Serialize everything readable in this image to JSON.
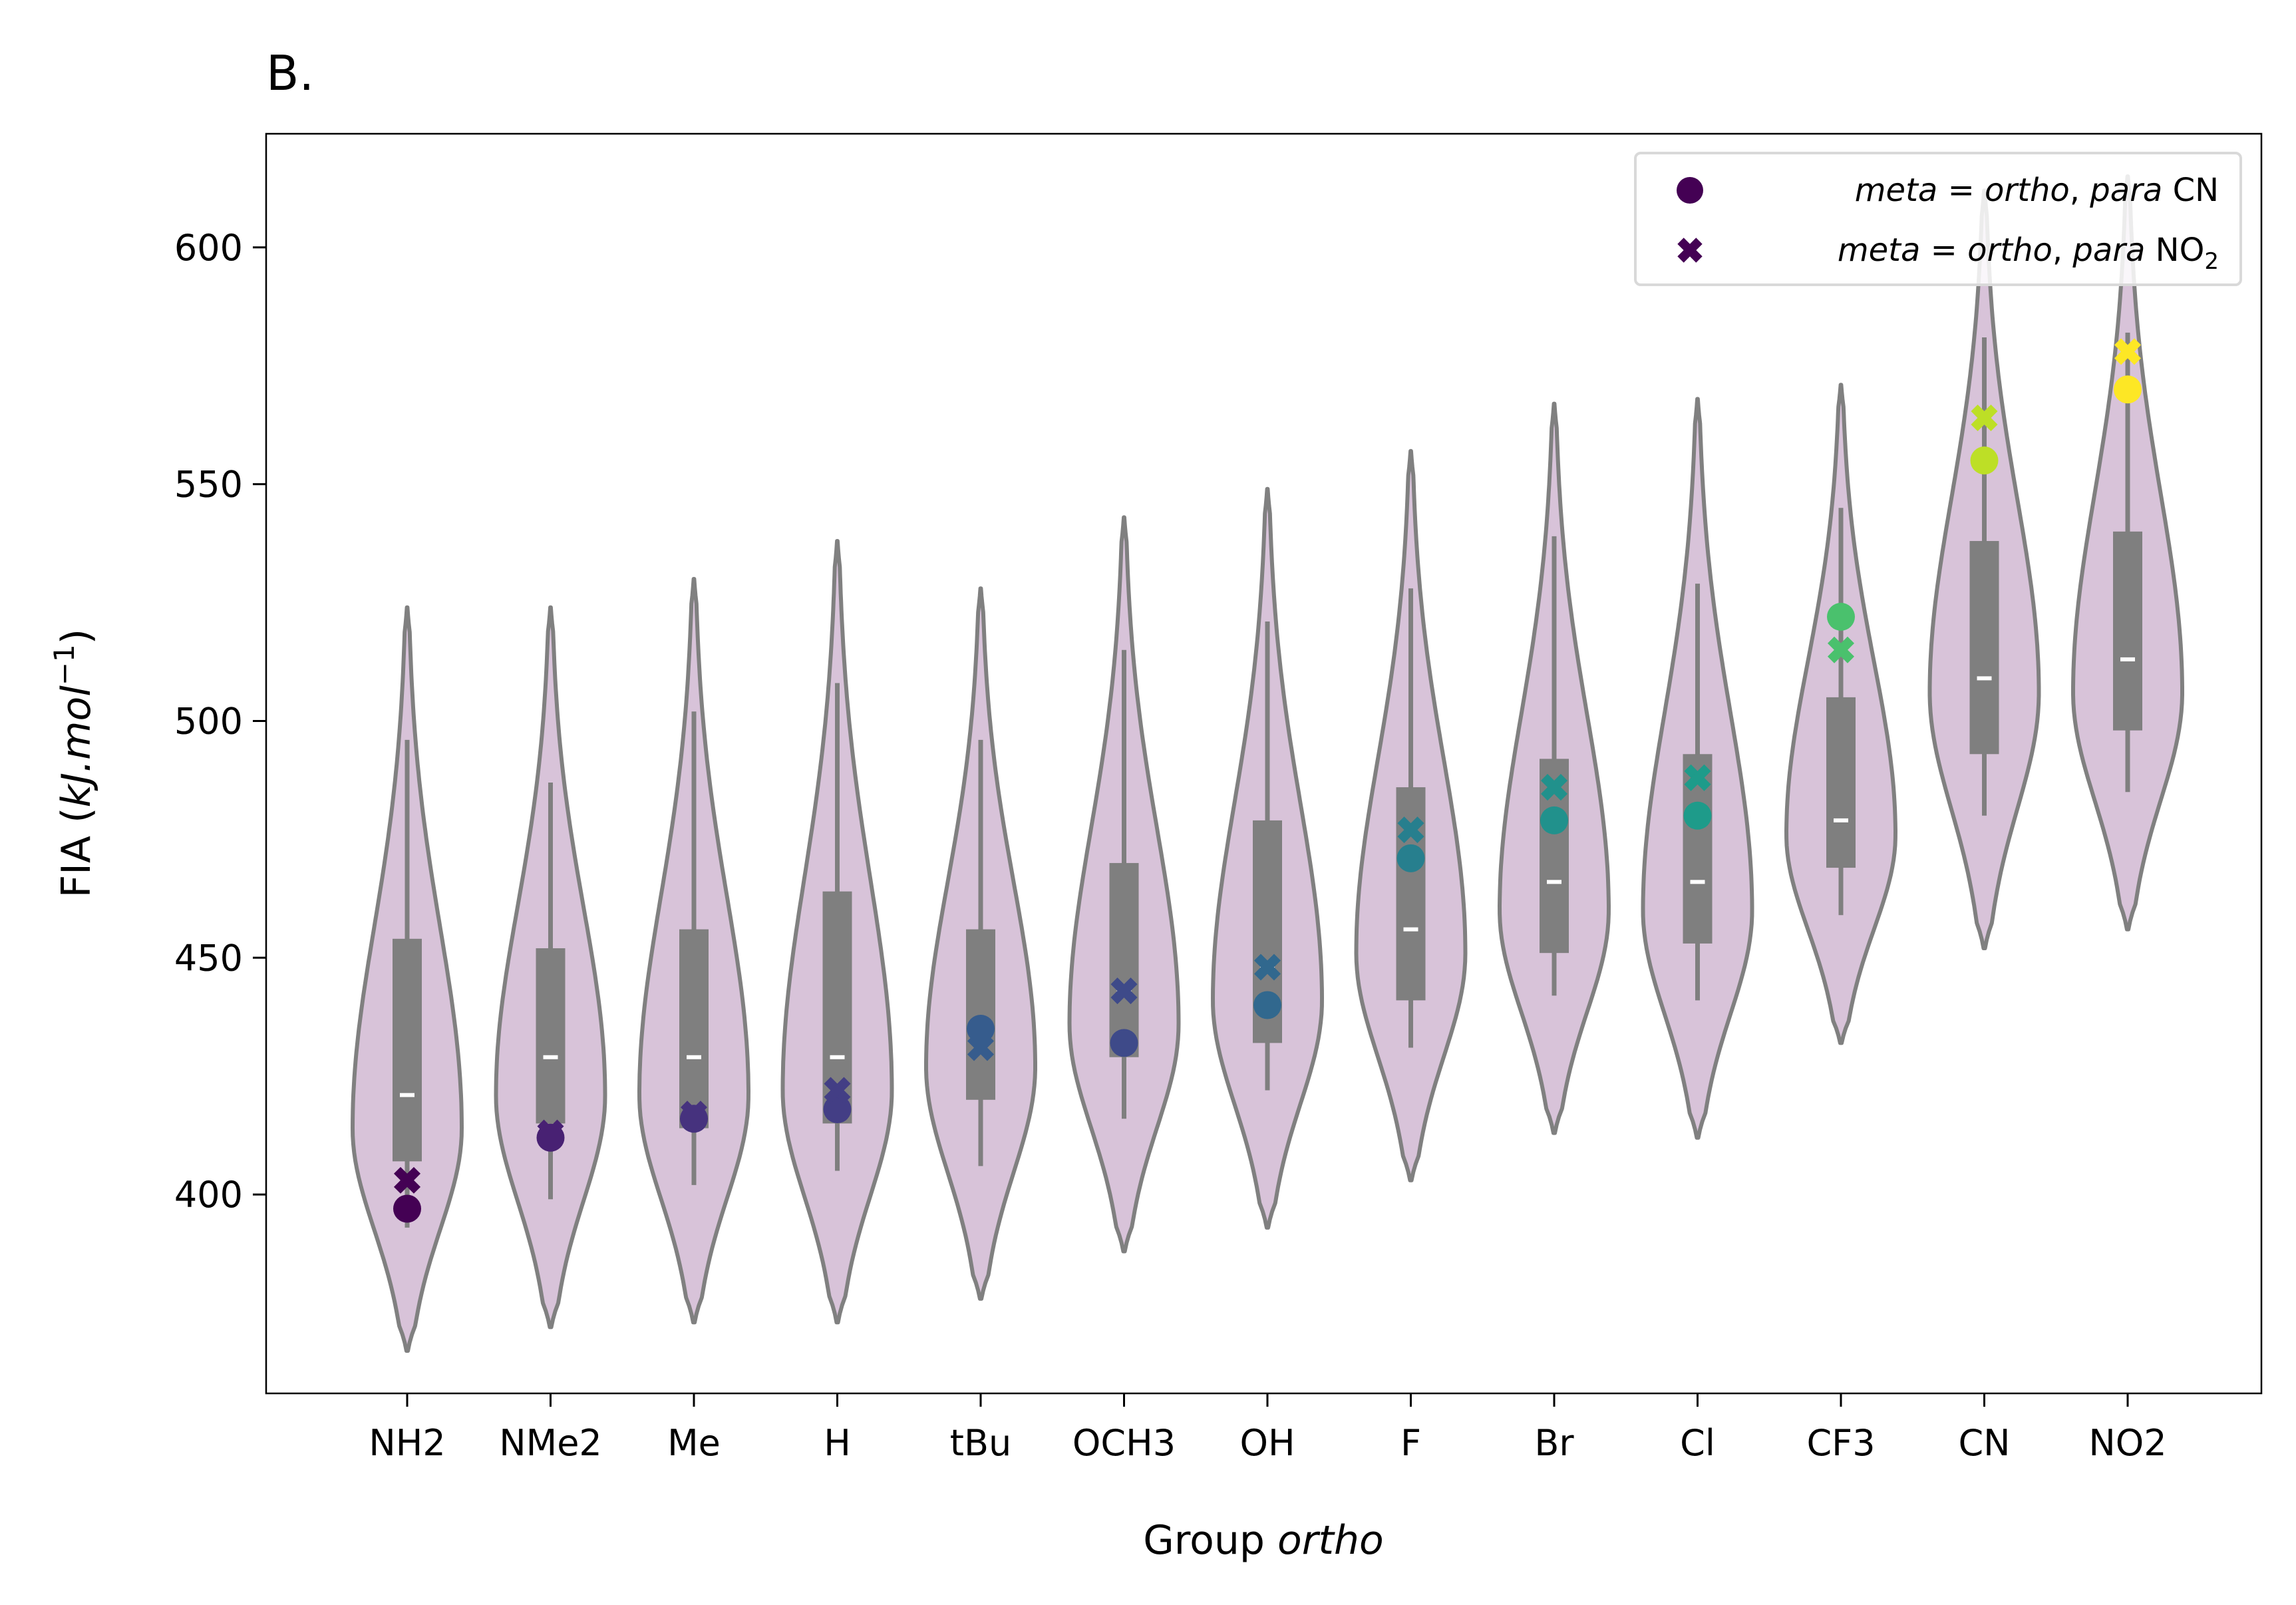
{
  "chart_data": {
    "type": "violin",
    "panel_label": "B.",
    "xlabel_prefix": "Group ",
    "xlabel_italic": "ortho",
    "ylabel_prefix": "FIA (",
    "ylabel_italic": "kJ.mol",
    "ylabel_sup": "−1",
    "ylabel_suffix": ")",
    "ylim": [
      358,
      624
    ],
    "yticks": [
      400,
      450,
      500,
      550,
      600
    ],
    "categories": [
      "NH2",
      "NMe2",
      "Me",
      "H",
      "tBu",
      "OCH3",
      "OH",
      "F",
      "Br",
      "Cl",
      "CF3",
      "CN",
      "NO2"
    ],
    "violins": [
      {
        "group": "NH2",
        "ymin": 367,
        "ymax": 524,
        "mode": 414,
        "q1": 407,
        "q3": 454,
        "median": 421,
        "wlo": 393,
        "whi": 496
      },
      {
        "group": "NMe2",
        "ymin": 372,
        "ymax": 524,
        "mode": 421,
        "q1": 415,
        "q3": 452,
        "median": 429,
        "wlo": 399,
        "whi": 487
      },
      {
        "group": "Me",
        "ymin": 373,
        "ymax": 530,
        "mode": 421,
        "q1": 414,
        "q3": 456,
        "median": 429,
        "wlo": 402,
        "whi": 502
      },
      {
        "group": "H",
        "ymin": 373,
        "ymax": 538,
        "mode": 422,
        "q1": 415,
        "q3": 464,
        "median": 429,
        "wlo": 405,
        "whi": 508
      },
      {
        "group": "tBu",
        "ymin": 378,
        "ymax": 528,
        "mode": 427,
        "q1": 420,
        "q3": 456,
        "median": 437,
        "wlo": 406,
        "whi": 496
      },
      {
        "group": "OCH3",
        "ymin": 388,
        "ymax": 543,
        "mode": 436,
        "q1": 429,
        "q3": 470,
        "median": 443,
        "wlo": 416,
        "whi": 515
      },
      {
        "group": "OH",
        "ymin": 393,
        "ymax": 549,
        "mode": 441,
        "q1": 432,
        "q3": 479,
        "median": 448,
        "wlo": 422,
        "whi": 521
      },
      {
        "group": "F",
        "ymin": 403,
        "ymax": 557,
        "mode": 451,
        "q1": 441,
        "q3": 486,
        "median": 456,
        "wlo": 431,
        "whi": 528
      },
      {
        "group": "Br",
        "ymin": 413,
        "ymax": 567,
        "mode": 460,
        "q1": 451,
        "q3": 492,
        "median": 466,
        "wlo": 442,
        "whi": 539
      },
      {
        "group": "Cl",
        "ymin": 412,
        "ymax": 568,
        "mode": 460,
        "q1": 453,
        "q3": 493,
        "median": 466,
        "wlo": 441,
        "whi": 529
      },
      {
        "group": "CF3",
        "ymin": 432,
        "ymax": 571,
        "mode": 476,
        "q1": 469,
        "q3": 505,
        "median": 479,
        "wlo": 459,
        "whi": 545
      },
      {
        "group": "CN",
        "ymin": 452,
        "ymax": 612,
        "mode": 506,
        "q1": 493,
        "q3": 538,
        "median": 509,
        "wlo": 480,
        "whi": 581
      },
      {
        "group": "NO2",
        "ymin": 456,
        "ymax": 615,
        "mode": 506,
        "q1": 498,
        "q3": 540,
        "median": 513,
        "wlo": 485,
        "whi": 582
      }
    ],
    "series": [
      {
        "legend_italic_1": "meta",
        "legend_mid": " = ",
        "legend_italic_2": "ortho",
        "legend_sep": ", ",
        "legend_italic_3": "para",
        "legend_tail": " CN",
        "legend_sub": "",
        "marker": "circle",
        "values": [
          397,
          412,
          416,
          418,
          435,
          432,
          440,
          471,
          479,
          480,
          522,
          555,
          570
        ]
      },
      {
        "legend_italic_1": "meta",
        "legend_mid": " = ",
        "legend_italic_2": "ortho",
        "legend_sep": ", ",
        "legend_italic_3": "para",
        "legend_tail": " NO",
        "legend_sub": "2",
        "marker": "x",
        "values": [
          403,
          413,
          417,
          422,
          431,
          443,
          448,
          477,
          486,
          488,
          515,
          564,
          578
        ]
      }
    ],
    "point_colors": [
      "#440154",
      "#482173",
      "#46327e",
      "#433e85",
      "#365c8d",
      "#3e4a89",
      "#31688e",
      "#277f8e",
      "#21918c",
      "#1e9b8a",
      "#4ac16d",
      "#bddf26",
      "#fde725"
    ],
    "legend_marker_color": "#440154",
    "violin_fill": "#d8c3d9",
    "violin_edge": "#808080",
    "box_color": "#7f7f7f",
    "median_color": "#ffffff",
    "legend_position": "upper right"
  }
}
